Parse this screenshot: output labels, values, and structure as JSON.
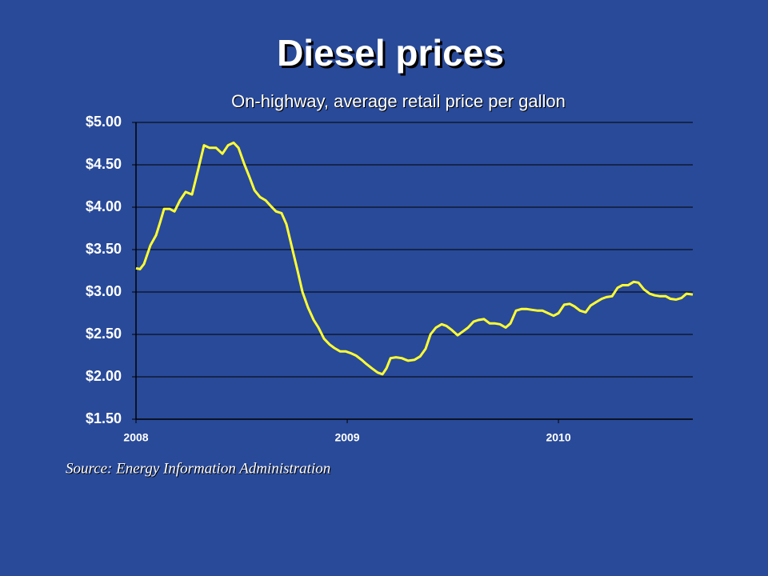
{
  "chart_data": {
    "type": "line",
    "title": "Diesel prices",
    "subtitle": "On-highway, average retail price per gallon",
    "annotation": "Source: Energy Information Administration",
    "xlim": [
      2008,
      2010.636
    ],
    "xticks": [
      2008,
      2009,
      2010
    ],
    "ylim": [
      1.5,
      5
    ],
    "yticks": [
      {
        "value": 1.5,
        "label": "$1.50"
      },
      {
        "value": 2,
        "label": "$2.00"
      },
      {
        "value": 2.5,
        "label": "$2.50"
      },
      {
        "value": 3,
        "label": "$3.00"
      },
      {
        "value": 3.5,
        "label": "$3.50"
      },
      {
        "value": 4,
        "label": "$4.00"
      },
      {
        "value": 4.5,
        "label": "$4.50"
      },
      {
        "value": 5,
        "label": "$5.00"
      }
    ],
    "grid": true,
    "x": [
      2008,
      2008.019,
      2008.038,
      2008.068,
      2008.095,
      2008.114,
      2008.133,
      2008.159,
      2008.182,
      2008.208,
      2008.235,
      2008.265,
      2008.292,
      2008.322,
      2008.348,
      2008.379,
      2008.409,
      2008.436,
      2008.462,
      2008.485,
      2008.511,
      2008.538,
      2008.561,
      2008.587,
      2008.614,
      2008.636,
      2008.663,
      2008.689,
      2008.712,
      2008.739,
      2008.765,
      2008.788,
      2008.814,
      2008.841,
      2008.864,
      2008.89,
      2008.917,
      2008.939,
      2008.966,
      2008.992,
      2009.015,
      2009.042,
      2009.068,
      2009.091,
      2009.117,
      2009.144,
      2009.167,
      2009.186,
      2009.205,
      2009.231,
      2009.258,
      2009.288,
      2009.318,
      2009.345,
      2009.371,
      2009.394,
      2009.42,
      2009.447,
      2009.47,
      2009.496,
      2009.523,
      2009.545,
      2009.572,
      2009.598,
      2009.621,
      2009.648,
      2009.674,
      2009.697,
      2009.723,
      2009.75,
      2009.773,
      2009.799,
      2009.826,
      2009.848,
      2009.875,
      2009.902,
      2009.924,
      2009.951,
      2009.977,
      2010.0,
      2010.027,
      2010.053,
      2010.076,
      2010.102,
      2010.129,
      2010.152,
      2010.178,
      2010.205,
      2010.227,
      2010.254,
      2010.28,
      2010.303,
      2010.33,
      2010.356,
      2010.379,
      2010.405,
      2010.432,
      2010.455,
      2010.481,
      2010.508,
      2010.53,
      2010.557,
      2010.583,
      2010.606,
      2010.636
    ],
    "series": [
      {
        "name": "Diesel",
        "color": "#ffff33",
        "values": [
          3.28,
          3.27,
          3.33,
          3.55,
          3.67,
          3.82,
          3.98,
          3.98,
          3.95,
          4.08,
          4.18,
          4.15,
          4.42,
          4.73,
          4.7,
          4.7,
          4.63,
          4.73,
          4.76,
          4.7,
          4.52,
          4.35,
          4.2,
          4.12,
          4.08,
          4.02,
          3.95,
          3.93,
          3.8,
          3.52,
          3.25,
          3.0,
          2.82,
          2.67,
          2.58,
          2.45,
          2.38,
          2.34,
          2.3,
          2.3,
          2.28,
          2.25,
          2.2,
          2.15,
          2.1,
          2.05,
          2.03,
          2.1,
          2.22,
          2.23,
          2.22,
          2.19,
          2.2,
          2.24,
          2.33,
          2.5,
          2.58,
          2.62,
          2.6,
          2.55,
          2.49,
          2.53,
          2.58,
          2.65,
          2.67,
          2.68,
          2.63,
          2.63,
          2.62,
          2.58,
          2.63,
          2.78,
          2.8,
          2.8,
          2.79,
          2.78,
          2.78,
          2.75,
          2.72,
          2.75,
          2.85,
          2.86,
          2.83,
          2.78,
          2.76,
          2.84,
          2.88,
          2.92,
          2.94,
          2.95,
          3.05,
          3.08,
          3.08,
          3.12,
          3.11,
          3.03,
          2.98,
          2.96,
          2.95,
          2.95,
          2.92,
          2.91,
          2.93,
          2.98,
          2.97
        ]
      }
    ]
  }
}
